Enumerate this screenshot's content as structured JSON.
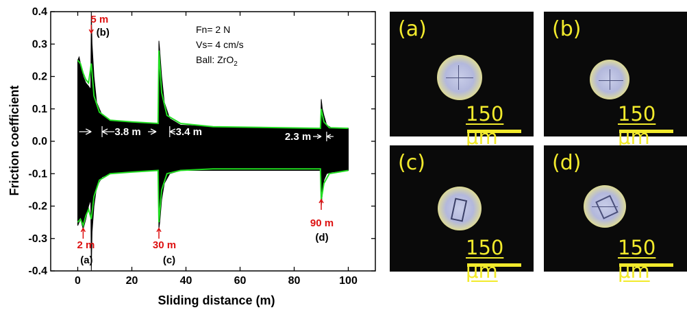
{
  "chart_data": {
    "type": "line",
    "xlabel": "Sliding distance (m)",
    "ylabel": "Friction coefficient",
    "xlim": [
      -10,
      110
    ],
    "ylim": [
      -0.4,
      0.4
    ],
    "x_ticks": [
      0,
      20,
      40,
      60,
      80,
      100
    ],
    "y_ticks": [
      -0.4,
      -0.3,
      -0.2,
      -0.1,
      0.0,
      0.1,
      0.2,
      0.3,
      0.4
    ],
    "x_tick_labels": [
      "0",
      "20",
      "40",
      "60",
      "80",
      "100"
    ],
    "y_tick_labels": [
      "-0.4",
      "-0.3",
      "-0.2",
      "-0.1",
      "0.0",
      "0.1",
      "0.2",
      "0.3",
      "0.4"
    ],
    "conditions": [
      "Fn= 2 N",
      "Vs= 4 cm/s",
      "Ball: ZrO"
    ],
    "ball_subscript": "2",
    "series": [
      {
        "color": "#000000",
        "upper": [
          [
            0,
            0.25
          ],
          [
            0.5,
            0.26
          ],
          [
            1,
            0.24
          ],
          [
            2,
            0.2
          ],
          [
            3,
            0.18
          ],
          [
            4,
            0.17
          ],
          [
            4.8,
            0.16
          ],
          [
            5,
            0.4
          ],
          [
            5.3,
            0.3
          ],
          [
            6,
            0.2
          ],
          [
            7,
            0.12
          ],
          [
            9,
            0.08
          ],
          [
            12,
            0.065
          ],
          [
            20,
            0.06
          ],
          [
            29.6,
            0.055
          ],
          [
            29.8,
            0.06
          ],
          [
            30,
            0.31
          ],
          [
            30.3,
            0.28
          ],
          [
            31,
            0.2
          ],
          [
            32,
            0.12
          ],
          [
            34,
            0.07
          ],
          [
            38,
            0.05
          ],
          [
            50,
            0.045
          ],
          [
            89.6,
            0.038
          ],
          [
            89.8,
            0.04
          ],
          [
            90,
            0.13
          ],
          [
            90.4,
            0.1
          ],
          [
            91,
            0.08
          ],
          [
            92,
            0.05
          ],
          [
            94,
            0.04
          ],
          [
            100,
            0.04
          ]
        ],
        "lower": [
          [
            0,
            -0.26
          ],
          [
            0.5,
            -0.25
          ],
          [
            1,
            -0.24
          ],
          [
            2,
            -0.27
          ],
          [
            3,
            -0.24
          ],
          [
            4,
            -0.2
          ],
          [
            4.8,
            -0.18
          ],
          [
            5,
            -0.4
          ],
          [
            5.3,
            -0.28
          ],
          [
            6,
            -0.2
          ],
          [
            7,
            -0.14
          ],
          [
            9,
            -0.11
          ],
          [
            12,
            -0.1
          ],
          [
            20,
            -0.095
          ],
          [
            29.6,
            -0.09
          ],
          [
            29.8,
            -0.1
          ],
          [
            30,
            -0.27
          ],
          [
            30.3,
            -0.25
          ],
          [
            31,
            -0.18
          ],
          [
            32,
            -0.13
          ],
          [
            34,
            -0.1
          ],
          [
            38,
            -0.09
          ],
          [
            50,
            -0.09
          ],
          [
            89.6,
            -0.09
          ],
          [
            89.8,
            -0.1
          ],
          [
            90,
            -0.2
          ],
          [
            90.4,
            -0.16
          ],
          [
            91,
            -0.12
          ],
          [
            92,
            -0.1
          ],
          [
            94,
            -0.095
          ],
          [
            100,
            -0.09
          ]
        ]
      },
      {
        "color": "#22dd22",
        "upper": [
          [
            0,
            0.25
          ],
          [
            1,
            0.24
          ],
          [
            2,
            0.21
          ],
          [
            3,
            0.19
          ],
          [
            4,
            0.18
          ],
          [
            5,
            0.24
          ],
          [
            6,
            0.14
          ],
          [
            8,
            0.09
          ],
          [
            12,
            0.065
          ],
          [
            20,
            0.06
          ],
          [
            29.7,
            0.055
          ],
          [
            30,
            0.28
          ],
          [
            31,
            0.15
          ],
          [
            33,
            0.08
          ],
          [
            38,
            0.055
          ],
          [
            50,
            0.045
          ],
          [
            89.7,
            0.04
          ],
          [
            90,
            0.1
          ],
          [
            91,
            0.06
          ],
          [
            93,
            0.042
          ],
          [
            100,
            0.04
          ]
        ],
        "lower": [
          [
            0,
            -0.25
          ],
          [
            1,
            -0.24
          ],
          [
            2,
            -0.26
          ],
          [
            3,
            -0.23
          ],
          [
            4,
            -0.21
          ],
          [
            5,
            -0.24
          ],
          [
            6,
            -0.17
          ],
          [
            8,
            -0.12
          ],
          [
            12,
            -0.1
          ],
          [
            20,
            -0.095
          ],
          [
            29.7,
            -0.09
          ],
          [
            30,
            -0.25
          ],
          [
            31,
            -0.15
          ],
          [
            33,
            -0.1
          ],
          [
            38,
            -0.09
          ],
          [
            50,
            -0.085
          ],
          [
            89.7,
            -0.085
          ],
          [
            90,
            -0.18
          ],
          [
            91,
            -0.13
          ],
          [
            93,
            -0.1
          ],
          [
            100,
            -0.09
          ]
        ]
      }
    ],
    "markers": [
      {
        "label": "5 m",
        "ref": "(b)",
        "x": 5,
        "color": "#dd1111"
      },
      {
        "label": "2 m",
        "ref": "(a)",
        "x": 2,
        "color": "#dd1111"
      },
      {
        "label": "30 m",
        "ref": "(c)",
        "x": 30,
        "color": "#dd1111"
      },
      {
        "label": "90 m",
        "ref": "(d)",
        "x": 90,
        "color": "#dd1111"
      }
    ],
    "spans": [
      {
        "label": "3.8 m",
        "x1": 5,
        "x2": 9
      },
      {
        "label": "3.4 m",
        "x1": 30,
        "x2": 34
      },
      {
        "label": "2.3 m",
        "x1": 90,
        "x2": 92
      }
    ]
  },
  "micrographs": [
    {
      "label": "(a)",
      "scale": "150 μm"
    },
    {
      "label": "(b)",
      "scale": "150 μm"
    },
    {
      "label": "(c)",
      "scale": "150 μm"
    },
    {
      "label": "(d)",
      "scale": "150 μm"
    }
  ],
  "colors": {
    "annotation_red": "#dd1111",
    "micrograph_yellow": "#f2ea2c",
    "envelope_green": "#22dd22"
  }
}
